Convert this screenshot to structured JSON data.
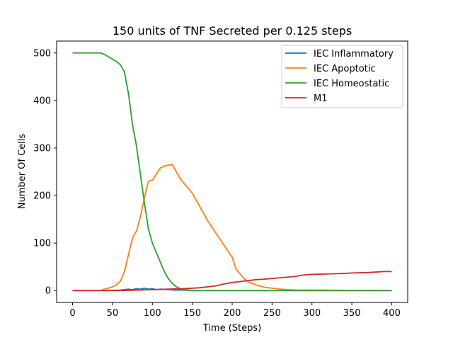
{
  "chart_data": {
    "type": "line",
    "title": "150 units of TNF Secreted per 0.125 steps",
    "xlabel": "Time (Steps)",
    "ylabel": "Number Of Cells",
    "xlim": [
      -20,
      420
    ],
    "ylim": [
      -25,
      525
    ],
    "xticks": [
      0,
      50,
      100,
      150,
      200,
      250,
      300,
      350,
      400
    ],
    "yticks": [
      0,
      100,
      200,
      300,
      400,
      500
    ],
    "grid": false,
    "legend_position": "top-right",
    "series": [
      {
        "name": "IEC Inflammatory",
        "color": "#1f77b4",
        "x": [
          0,
          40,
          60,
          65,
          70,
          75,
          80,
          85,
          90,
          95,
          100,
          105,
          110,
          120,
          130,
          140,
          150,
          160,
          400
        ],
        "y": [
          0,
          0,
          1,
          2,
          3,
          2,
          4,
          3,
          5,
          3,
          4,
          2,
          3,
          2,
          1,
          1,
          0,
          0,
          0
        ]
      },
      {
        "name": "IEC Apoptotic",
        "color": "#ff7f0e",
        "x": [
          0,
          35,
          40,
          45,
          50,
          55,
          60,
          65,
          70,
          75,
          80,
          85,
          90,
          95,
          100,
          105,
          110,
          115,
          120,
          125,
          130,
          135,
          140,
          150,
          160,
          170,
          180,
          190,
          200,
          205,
          210,
          215,
          220,
          230,
          240,
          250,
          260,
          270,
          280,
          300,
          400
        ],
        "y": [
          0,
          0,
          3,
          5,
          8,
          12,
          20,
          40,
          75,
          110,
          125,
          155,
          195,
          230,
          232,
          245,
          258,
          262,
          264,
          265,
          250,
          235,
          225,
          205,
          175,
          145,
          120,
          95,
          70,
          45,
          35,
          25,
          18,
          12,
          7,
          5,
          3,
          2,
          1,
          1,
          0
        ]
      },
      {
        "name": "IEC Homeostatic",
        "color": "#2ca02c",
        "x": [
          0,
          35,
          40,
          45,
          50,
          55,
          60,
          65,
          70,
          72,
          75,
          80,
          85,
          90,
          95,
          100,
          105,
          110,
          115,
          120,
          125,
          130,
          135,
          140,
          145,
          150,
          160,
          400
        ],
        "y": [
          500,
          500,
          497,
          492,
          487,
          482,
          475,
          460,
          415,
          390,
          350,
          305,
          245,
          185,
          130,
          100,
          80,
          60,
          40,
          25,
          15,
          8,
          4,
          2,
          1,
          0,
          0,
          0
        ]
      },
      {
        "name": "M1",
        "color": "#d62728",
        "x": [
          0,
          60,
          80,
          100,
          120,
          140,
          160,
          180,
          190,
          200,
          210,
          220,
          230,
          240,
          260,
          280,
          290,
          300,
          320,
          340,
          350,
          370,
          380,
          390,
          400
        ],
        "y": [
          0,
          0,
          1,
          2,
          3,
          4,
          6,
          10,
          14,
          17,
          19,
          21,
          23,
          24,
          27,
          30,
          33,
          34,
          35,
          36,
          37,
          38,
          39,
          40,
          40
        ]
      }
    ]
  }
}
